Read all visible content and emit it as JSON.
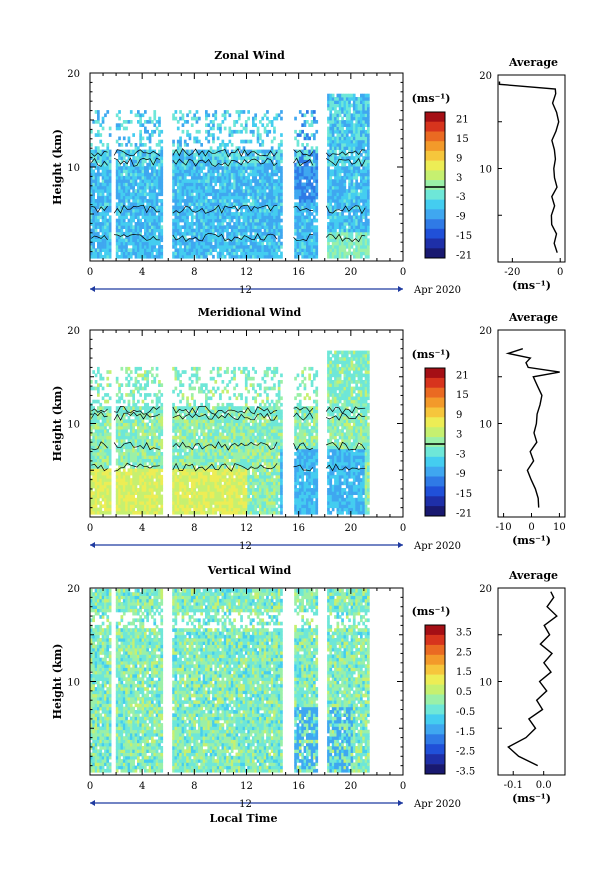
{
  "colors": {
    "palette": [
      "#191970",
      "#1e2fa8",
      "#2050d8",
      "#2f7ae6",
      "#3fa7f0",
      "#44cdf0",
      "#6ee7d8",
      "#9af0a8",
      "#c6f070",
      "#eded55",
      "#f6c63c",
      "#f39a2a",
      "#ea6a22",
      "#d7341d",
      "#a50f15"
    ],
    "contour": "#000000",
    "date_axis": "#1f3aa0"
  },
  "chart_data": [
    {
      "id": "zonal",
      "type": "heatmap",
      "title": "Zonal Wind",
      "ylabel": "Height (km)",
      "yticks": [
        "20",
        "10"
      ],
      "xticks": [
        "0",
        "4",
        "8",
        "12",
        "16",
        "20",
        "0"
      ],
      "xlim": [
        0,
        24
      ],
      "ylim": [
        0,
        20
      ],
      "date_label": "12",
      "date_suffix": "Apr 2020",
      "colorbar": {
        "unit": "(ms⁻¹)",
        "ticks": [
          "21",
          "15",
          "9",
          "3",
          "-3",
          "-9",
          "-15",
          "-21"
        ],
        "range": [
          -24,
          24
        ],
        "zero_line": true
      },
      "profile": {
        "title": "Average",
        "xticks": [
          "-20",
          "0"
        ],
        "xlim": [
          -26,
          2
        ],
        "yticks": [
          "20",
          "10"
        ],
        "xlabel": "(ms⁻¹)",
        "heights": [
          1,
          2,
          3,
          4,
          5,
          6,
          7,
          8,
          9,
          10,
          11,
          12,
          13,
          14,
          15,
          16,
          17,
          18,
          18.5,
          19,
          19.3
        ],
        "values": [
          -1,
          -2,
          -1.5,
          -3,
          -4,
          -2,
          -3,
          -1,
          -2.5,
          -3,
          -1.5,
          -2,
          -3,
          -2,
          -1,
          -2,
          -3,
          -2,
          -1.5,
          -25,
          -25
        ]
      }
    },
    {
      "id": "meridional",
      "type": "heatmap",
      "title": "Meridional Wind",
      "ylabel": "Height (km)",
      "yticks": [
        "20",
        "10"
      ],
      "xticks": [
        "0",
        "4",
        "8",
        "12",
        "16",
        "20",
        "0"
      ],
      "xlim": [
        0,
        24
      ],
      "ylim": [
        0,
        20
      ],
      "date_label": "12",
      "date_suffix": "Apr 2020",
      "colorbar": {
        "unit": "(ms⁻¹)",
        "ticks": [
          "21",
          "15",
          "9",
          "3",
          "-3",
          "-9",
          "-15",
          "-21"
        ],
        "range": [
          -24,
          24
        ],
        "zero_line": true
      },
      "profile": {
        "title": "Average",
        "xticks": [
          "-10",
          "0",
          "10"
        ],
        "xlim": [
          -12,
          12
        ],
        "yticks": [
          "20",
          "10"
        ],
        "xlabel": "(ms⁻¹)",
        "heights": [
          1,
          2,
          3,
          4,
          5,
          6,
          7,
          8,
          9,
          10,
          11,
          12,
          13,
          14,
          15,
          15.5,
          16,
          16.5,
          17,
          17.5,
          18
        ],
        "values": [
          3,
          2,
          1,
          0,
          -1,
          1,
          0,
          2,
          1,
          1.5,
          2,
          3,
          3.5,
          2,
          1,
          10,
          -1,
          -2,
          0,
          -8,
          -3
        ]
      }
    },
    {
      "id": "vertical",
      "type": "heatmap",
      "title": "Vertical Wind",
      "ylabel": "Height (km)",
      "yticks": [
        "20",
        "10"
      ],
      "xticks": [
        "0",
        "4",
        "8",
        "12",
        "16",
        "20",
        "0"
      ],
      "xlim": [
        0,
        24
      ],
      "ylim": [
        0,
        20
      ],
      "date_label": "12",
      "date_suffix": "Apr 2020",
      "xlabel": "Local Time",
      "colorbar": {
        "unit": "(ms⁻¹)",
        "ticks": [
          "3.5",
          "2.5",
          "1.5",
          "0.5",
          "-0.5",
          "-1.5",
          "-2.5",
          "-3.5"
        ],
        "range": [
          -4,
          4
        ],
        "zero_line": false
      },
      "profile": {
        "title": "Average",
        "xticks": [
          "-0.1",
          "0.0"
        ],
        "xlim": [
          -0.15,
          0.07
        ],
        "yticks": [
          "20",
          "10"
        ],
        "xlabel": "(ms⁻¹)",
        "heights": [
          1,
          2,
          3,
          4,
          5,
          6,
          7,
          8,
          9,
          10,
          11,
          12,
          13,
          14,
          15,
          16,
          17,
          18,
          19,
          19.6
        ],
        "values": [
          -0.02,
          -0.08,
          -0.12,
          -0.06,
          -0.03,
          -0.05,
          0.0,
          -0.02,
          0.01,
          -0.01,
          0.02,
          0.0,
          0.03,
          -0.01,
          0.02,
          0.0,
          0.04,
          0.01,
          0.03,
          0.02
        ]
      }
    }
  ]
}
